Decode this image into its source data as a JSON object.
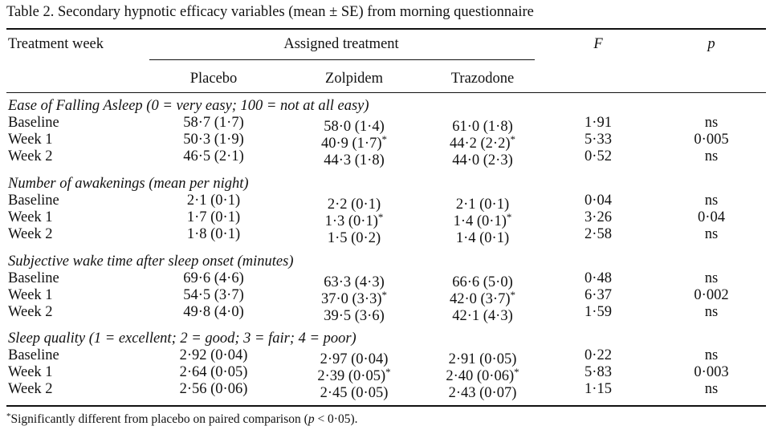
{
  "caption": "Table 2.   Secondary hypnotic efficacy variables (mean ± SE) from morning questionnaire",
  "headers": {
    "treatment_week": "Treatment week",
    "assigned": "Assigned treatment",
    "f": "F",
    "p": "p",
    "placebo": "Placebo",
    "zolpidem": "Zolpidem",
    "trazodone": "Trazodone"
  },
  "sections": [
    {
      "title": "Ease of Falling Asleep (0 = very easy; 100 = not at all easy)",
      "rows": [
        {
          "week": "Baseline",
          "placebo": "58·7 (1·7)",
          "zolpidem": "58·0 (1·4)",
          "zolpidem_star": "",
          "trazodone": "61·0 (1·8)",
          "trazodone_star": "",
          "f": "1·91",
          "p": "ns"
        },
        {
          "week": "Week 1",
          "placebo": "50·3 (1·9)",
          "zolpidem": "40·9 (1·7)",
          "zolpidem_star": "*",
          "trazodone": "44·2 (2·2)",
          "trazodone_star": "*",
          "f": "5·33",
          "p": "0·005"
        },
        {
          "week": "Week 2",
          "placebo": "46·5 (2·1)",
          "zolpidem": "44·3 (1·8)",
          "zolpidem_star": "",
          "trazodone": "44·0 (2·3)",
          "trazodone_star": "",
          "f": "0·52",
          "p": "ns"
        }
      ]
    },
    {
      "title": "Number of awakenings (mean per night)",
      "rows": [
        {
          "week": "Baseline",
          "placebo": "2·1 (0·1)",
          "zolpidem": "2·2 (0·1)",
          "zolpidem_star": "",
          "trazodone": "2·1 (0·1)",
          "trazodone_star": "",
          "f": "0·04",
          "p": "ns"
        },
        {
          "week": "Week 1",
          "placebo": "1·7 (0·1)",
          "zolpidem": "1·3 (0·1)",
          "zolpidem_star": "*",
          "trazodone": "1·4 (0·1)",
          "trazodone_star": "*",
          "f": "3·26",
          "p": "0·04"
        },
        {
          "week": "Week 2",
          "placebo": "1·8 (0·1)",
          "zolpidem": "1·5 (0·2)",
          "zolpidem_star": "",
          "trazodone": "1·4 (0·1)",
          "trazodone_star": "",
          "f": "2·58",
          "p": "ns"
        }
      ]
    },
    {
      "title": "Subjective wake time after sleep onset (minutes)",
      "rows": [
        {
          "week": "Baseline",
          "placebo": "69·6 (4·6)",
          "zolpidem": "63·3 (4·3)",
          "zolpidem_star": "",
          "trazodone": "66·6 (5·0)",
          "trazodone_star": "",
          "f": "0·48",
          "p": "ns"
        },
        {
          "week": "Week 1",
          "placebo": "54·5 (3·7)",
          "zolpidem": "37·0 (3·3)",
          "zolpidem_star": "*",
          "trazodone": "42·0 (3·7)",
          "trazodone_star": "*",
          "f": "6·37",
          "p": "0·002"
        },
        {
          "week": "Week 2",
          "placebo": "49·8 (4·0)",
          "zolpidem": "39·5 (3·6)",
          "zolpidem_star": "",
          "trazodone": "42·1 (4·3)",
          "trazodone_star": "",
          "f": "1·59",
          "p": "ns"
        }
      ]
    },
    {
      "title": "Sleep quality (1 = excellent; 2 = good; 3 = fair; 4 = poor)",
      "rows": [
        {
          "week": "Baseline",
          "placebo": "2·92 (0·04)",
          "zolpidem": "2·97 (0·04)",
          "zolpidem_star": "",
          "trazodone": "2·91 (0·05)",
          "trazodone_star": "",
          "f": "0·22",
          "p": "ns"
        },
        {
          "week": "Week 1",
          "placebo": "2·64 (0·05)",
          "zolpidem": "2·39 (0·05)",
          "zolpidem_star": "*",
          "trazodone": "2·40 (0·06)",
          "trazodone_star": "*",
          "f": "5·83",
          "p": "0·003"
        },
        {
          "week": "Week 2",
          "placebo": "2·56 (0·06)",
          "zolpidem": "2·45 (0·05)",
          "zolpidem_star": "",
          "trazodone": "2·43 (0·07)",
          "trazodone_star": "",
          "f": "1·15",
          "p": "ns"
        }
      ]
    }
  ],
  "footnote": {
    "mark": "*",
    "text_before": "Significantly different from placebo on paired comparison (",
    "p_symbol": "p",
    "text_after": " < 0·05)."
  }
}
